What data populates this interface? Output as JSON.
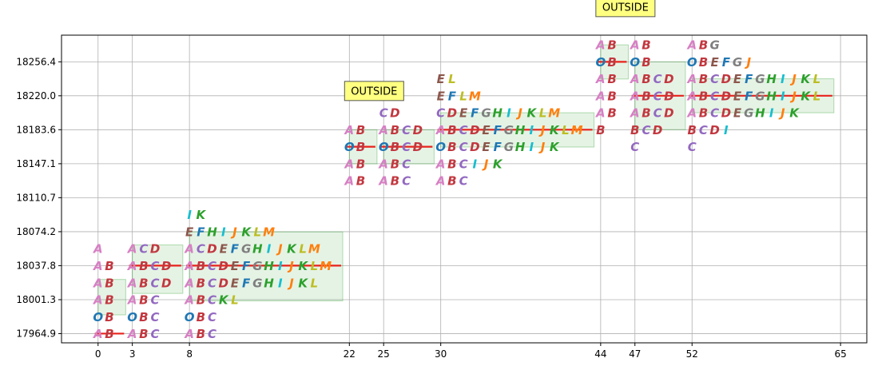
{
  "chart_data": {
    "type": "scatter",
    "title": "",
    "xlabel": "",
    "ylabel": "",
    "xlim": [
      -3.2,
      67.3
    ],
    "ylim": [
      17955,
      18285
    ],
    "x_ticks": [
      0,
      3,
      8,
      22,
      25,
      30,
      44,
      47,
      52,
      65
    ],
    "y_ticks": [
      {
        "value": 17964.9,
        "label": "17964.9"
      },
      {
        "value": 18001.3,
        "label": "18001.3"
      },
      {
        "value": 18037.8,
        "label": "18037.8"
      },
      {
        "value": 18074.2,
        "label": "18074.2"
      },
      {
        "value": 18110.7,
        "label": "18110.7"
      },
      {
        "value": 18147.1,
        "label": "18147.1"
      },
      {
        "value": 18183.6,
        "label": "18183.6"
      },
      {
        "value": 18220.0,
        "label": "18220.0"
      },
      {
        "value": 18256.4,
        "label": "18256.4"
      }
    ],
    "grid": true,
    "letter_colors": {
      "A": "#d77fc4",
      "B": "#c2373f",
      "C": "#9268c0",
      "D": "#c2373f",
      "E": "#8c564b",
      "F": "#1f77b4",
      "G": "#7f7f7f",
      "H": "#2ca02c",
      "I": "#17becf",
      "J": "#ff7f0e",
      "K": "#2ca02c",
      "L": "#bcbd22",
      "M": "#ff7f0e",
      "O": "#1f77b4"
    },
    "groups": [
      {
        "x": 0,
        "x2": 2,
        "close": 17964.9,
        "box": [
          17985,
          18023
        ],
        "rows": [
          {
            "y": 17964.9,
            "text": "AB"
          },
          {
            "y": 17983.0,
            "text": "OB"
          },
          {
            "y": 18001.3,
            "text": "AB"
          },
          {
            "y": 18019.5,
            "text": "AB"
          },
          {
            "y": 18037.8,
            "text": "AB"
          },
          {
            "y": 18056.0,
            "text": "A"
          }
        ]
      },
      {
        "x": 3,
        "x2": 7,
        "close": 18037.8,
        "box": [
          18008,
          18060
        ],
        "rows": [
          {
            "y": 17964.9,
            "text": "ABC"
          },
          {
            "y": 17983.0,
            "text": "OBC"
          },
          {
            "y": 18001.3,
            "text": "ABC"
          },
          {
            "y": 18019.5,
            "text": "ABCD"
          },
          {
            "y": 18037.8,
            "text": "ABCD"
          },
          {
            "y": 18056.0,
            "text": "ACD"
          }
        ]
      },
      {
        "x": 8,
        "x2": 21,
        "close": 18037.8,
        "box": [
          18000,
          18074
        ],
        "rows": [
          {
            "y": 17964.9,
            "text": "ABC"
          },
          {
            "y": 17983.0,
            "text": "OBC"
          },
          {
            "y": 18001.3,
            "text": "ABCKL"
          },
          {
            "y": 18019.5,
            "text": "ABCDEFGHIJKL"
          },
          {
            "y": 18037.8,
            "text": "ABCDEFGHIJKLM"
          },
          {
            "y": 18056.0,
            "text": "ACDEFGHIJKLM"
          },
          {
            "y": 18074.2,
            "text": "EFHIJKLM"
          },
          {
            "y": 18092.5,
            "text": "IK"
          }
        ]
      },
      {
        "x": 22,
        "x2": 24,
        "close": 18165.3,
        "box": [
          18147,
          18183.6
        ],
        "rows": [
          {
            "y": 18128.9,
            "text": "AB"
          },
          {
            "y": 18147.1,
            "text": "AB"
          },
          {
            "y": 18165.3,
            "text": "OB"
          },
          {
            "y": 18183.6,
            "text": "AB"
          }
        ]
      },
      {
        "x": 25,
        "x2": 29,
        "close": 18165.3,
        "box": [
          18147,
          18183.6
        ],
        "rows": [
          {
            "y": 18128.9,
            "text": "ABC"
          },
          {
            "y": 18147.1,
            "text": "ABC"
          },
          {
            "y": 18165.3,
            "text": "OBCD"
          },
          {
            "y": 18183.6,
            "text": "ABCD"
          },
          {
            "y": 18201.8,
            "text": "CD"
          }
        ]
      },
      {
        "x": 30,
        "x2": 43,
        "close": 18183.6,
        "box": [
          18165,
          18201.8
        ],
        "rows": [
          {
            "y": 18128.9,
            "text": "ABC"
          },
          {
            "y": 18147.1,
            "text": "ABCIJK"
          },
          {
            "y": 18165.3,
            "text": "OBCDEFGHIJK"
          },
          {
            "y": 18183.6,
            "text": "ABCDEFGHIJKLM"
          },
          {
            "y": 18201.8,
            "text": "CDEFGHIJKLM"
          },
          {
            "y": 18220.0,
            "text": "EFLM"
          },
          {
            "y": 18238.2,
            "text": "EL"
          }
        ]
      },
      {
        "x": 44,
        "x2": 46,
        "close": 18256.4,
        "box": [
          18238,
          18274.6
        ],
        "rows": [
          {
            "y": 18183.6,
            "text": "B"
          },
          {
            "y": 18201.8,
            "text": "AB"
          },
          {
            "y": 18220.0,
            "text": "AB"
          },
          {
            "y": 18238.2,
            "text": "AB"
          },
          {
            "y": 18256.4,
            "text": "OB"
          },
          {
            "y": 18274.6,
            "text": "AB"
          }
        ]
      },
      {
        "x": 47,
        "x2": 51,
        "close": 18220.0,
        "box": [
          18183.6,
          18256.4
        ],
        "rows": [
          {
            "y": 18165.3,
            "text": "C"
          },
          {
            "y": 18183.6,
            "text": "BCD"
          },
          {
            "y": 18201.8,
            "text": "ABCD"
          },
          {
            "y": 18220.0,
            "text": "ABCD"
          },
          {
            "y": 18238.2,
            "text": "ABCD"
          },
          {
            "y": 18256.4,
            "text": "OB"
          },
          {
            "y": 18274.6,
            "text": "AB"
          }
        ]
      },
      {
        "x": 52,
        "x2": 64,
        "close": 18220.0,
        "box": [
          18201.8,
          18238.2
        ],
        "rows": [
          {
            "y": 18165.3,
            "text": "C"
          },
          {
            "y": 18183.6,
            "text": "BCDI"
          },
          {
            "y": 18201.8,
            "text": "ABCDEGHIJK"
          },
          {
            "y": 18220.0,
            "text": "ABCDEFGHIJKL"
          },
          {
            "y": 18238.2,
            "text": "ABCDEFGHIJKL"
          },
          {
            "y": 18256.4,
            "text": "OBEFGJ"
          },
          {
            "y": 18274.6,
            "text": "ABG"
          }
        ]
      }
    ],
    "annotations": [
      {
        "x": 22,
        "y": 18220.0,
        "text": "OUTSIDE"
      },
      {
        "x": 44,
        "y": 18310.0,
        "text": "OUTSIDE"
      }
    ]
  }
}
